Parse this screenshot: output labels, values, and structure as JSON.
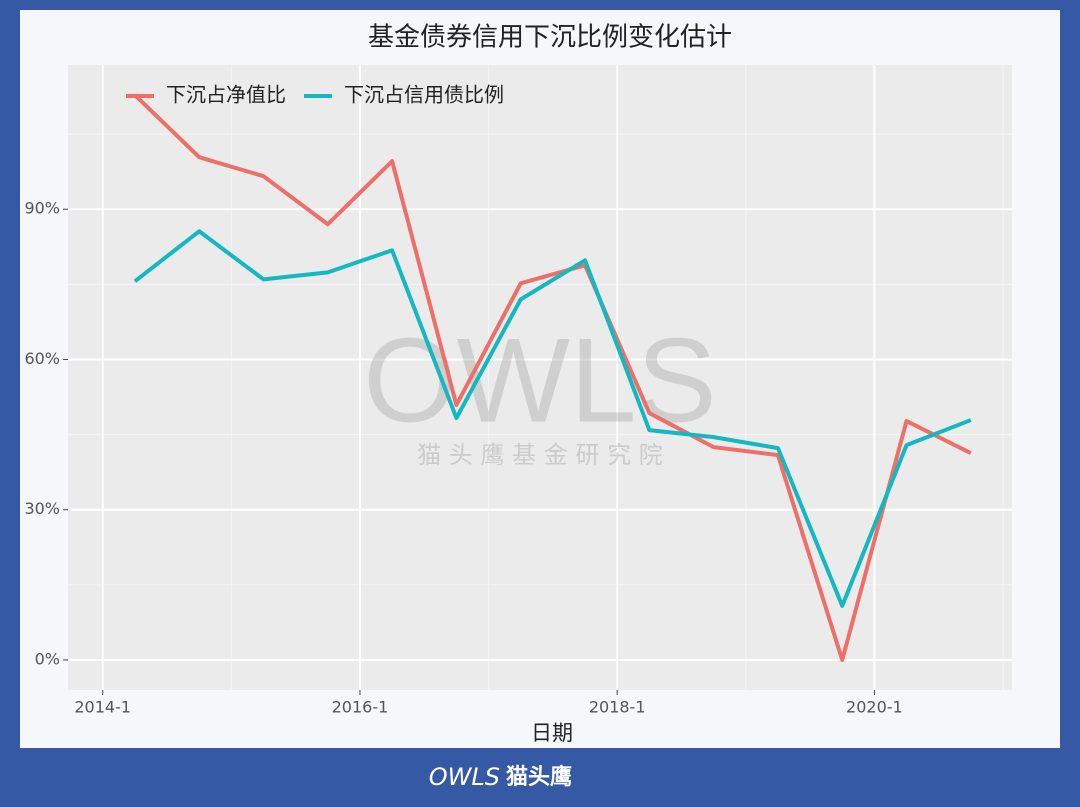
{
  "chart_data": {
    "type": "line",
    "title": "基金债券信用下沉比例变化估计",
    "x_label": "日期",
    "x": [
      2014.25,
      2014.75,
      2015.25,
      2015.75,
      2016.25,
      2016.75,
      2017.25,
      2017.75,
      2018.25,
      2018.75,
      2019.25,
      2019.75,
      2020.25,
      2020.75
    ],
    "series": [
      {
        "name": "下沉占净值比",
        "color": "#ee6f68",
        "values": [
          112.8,
          100.4,
          96.6,
          87,
          99.6,
          50.9,
          75.2,
          78.8,
          49.3,
          42.5,
          40.9,
          0,
          47.7,
          41.3
        ]
      },
      {
        "name": "下沉占信用债比例",
        "color": "#13b8c0",
        "values": [
          75.6,
          85.6,
          76,
          77.4,
          81.8,
          48.3,
          72,
          79.8,
          45.9,
          44.5,
          42.3,
          10.8,
          42.9,
          47.9
        ]
      }
    ],
    "xlim": [
      2013.73,
      2021.07
    ],
    "xticks": [
      {
        "value": 2014,
        "label": "2014-1"
      },
      {
        "value": 2016,
        "label": "2016-1"
      },
      {
        "value": 2018,
        "label": "2018-1"
      },
      {
        "value": 2020,
        "label": "2020-1"
      }
    ],
    "xticks_minor": [
      2015,
      2017,
      2019,
      2021
    ],
    "ylim": [
      -6,
      118.8
    ],
    "yticks": [
      {
        "value": 0,
        "label": "0%"
      },
      {
        "value": 30,
        "label": "30%"
      },
      {
        "value": 60,
        "label": "60%"
      },
      {
        "value": 90,
        "label": "90%"
      }
    ],
    "yticks_minor": [
      15,
      45,
      75,
      105
    ],
    "grid": true,
    "legend": "top-left",
    "watermark": "OWLS",
    "watermark_subtitle": "猫 头 鹰 基 金 研 究 院"
  },
  "footer": {
    "logo": "OWLS",
    "brand": "猫头鹰"
  }
}
